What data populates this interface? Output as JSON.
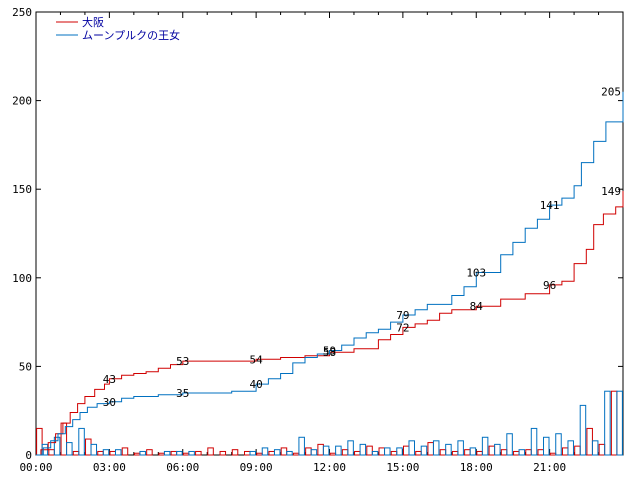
{
  "chart_data": {
    "type": "line",
    "title": "",
    "xlabel": "",
    "ylabel": "",
    "xlim_hours": [
      0,
      24
    ],
    "ylim": [
      0,
      250
    ],
    "grid": false,
    "legend_position": "top-left",
    "x_tick_labels": [
      "00:00",
      "03:00",
      "06:00",
      "09:00",
      "12:00",
      "15:00",
      "18:00",
      "21:00"
    ],
    "y_tick_labels": [
      "0",
      "50",
      "100",
      "150",
      "200",
      "250"
    ],
    "series": [
      {
        "name": "大阪",
        "color": "#d00000",
        "cumulative_points": [
          [
            0.0,
            0
          ],
          [
            0.2,
            3
          ],
          [
            0.5,
            7
          ],
          [
            0.8,
            12
          ],
          [
            1.1,
            18
          ],
          [
            1.4,
            24
          ],
          [
            1.7,
            29
          ],
          [
            2.0,
            33
          ],
          [
            2.4,
            37
          ],
          [
            2.8,
            40
          ],
          [
            3.0,
            43
          ],
          [
            3.5,
            45
          ],
          [
            4.0,
            46
          ],
          [
            4.5,
            47
          ],
          [
            5.0,
            49
          ],
          [
            5.5,
            51
          ],
          [
            6.0,
            53
          ],
          [
            7.0,
            53
          ],
          [
            8.0,
            53
          ],
          [
            9.0,
            54
          ],
          [
            10.0,
            55
          ],
          [
            11.0,
            56
          ],
          [
            11.5,
            56
          ],
          [
            12.0,
            58
          ],
          [
            13.0,
            60
          ],
          [
            14.0,
            65
          ],
          [
            14.5,
            68
          ],
          [
            15.0,
            72
          ],
          [
            15.5,
            74
          ],
          [
            16.0,
            76
          ],
          [
            16.5,
            80
          ],
          [
            17.0,
            82
          ],
          [
            18.0,
            84
          ],
          [
            19.0,
            88
          ],
          [
            20.0,
            91
          ],
          [
            21.0,
            96
          ],
          [
            21.5,
            98
          ],
          [
            22.0,
            108
          ],
          [
            22.5,
            116
          ],
          [
            22.8,
            130
          ],
          [
            23.2,
            136
          ],
          [
            23.7,
            140
          ],
          [
            24.0,
            149
          ]
        ],
        "point_labels": [
          {
            "x": 3.0,
            "y": 43,
            "text": "43"
          },
          {
            "x": 6.0,
            "y": 53,
            "text": "53"
          },
          {
            "x": 9.0,
            "y": 54,
            "text": "54"
          },
          {
            "x": 12.0,
            "y": 58,
            "text": "58"
          },
          {
            "x": 15.0,
            "y": 72,
            "text": "72"
          },
          {
            "x": 18.0,
            "y": 84,
            "text": "84"
          },
          {
            "x": 21.0,
            "y": 96,
            "text": "96"
          },
          {
            "x": 24.0,
            "y": 149,
            "text": "149"
          }
        ],
        "hourly_bars": [
          15,
          3,
          18,
          2,
          9,
          2,
          2,
          4,
          1,
          3,
          1,
          2,
          1,
          2,
          4,
          2,
          3,
          2,
          1,
          2,
          4,
          1,
          4,
          6,
          1,
          3,
          2,
          5,
          4,
          2,
          5,
          2,
          7,
          3,
          2,
          3,
          2,
          5,
          3,
          2,
          3,
          3,
          1,
          4,
          5,
          15,
          6,
          36
        ]
      },
      {
        "name": "ムーンプルクの王女",
        "color": "#0070c0",
        "cumulative_points": [
          [
            0.0,
            0
          ],
          [
            0.3,
            4
          ],
          [
            0.6,
            8
          ],
          [
            0.9,
            12
          ],
          [
            1.2,
            16
          ],
          [
            1.5,
            20
          ],
          [
            1.8,
            24
          ],
          [
            2.1,
            27
          ],
          [
            2.5,
            29
          ],
          [
            3.0,
            30
          ],
          [
            3.5,
            32
          ],
          [
            4.0,
            33
          ],
          [
            5.0,
            34
          ],
          [
            6.0,
            35
          ],
          [
            7.0,
            35
          ],
          [
            8.0,
            36
          ],
          [
            9.0,
            40
          ],
          [
            9.5,
            43
          ],
          [
            10.0,
            46
          ],
          [
            10.5,
            52
          ],
          [
            11.0,
            55
          ],
          [
            11.5,
            57
          ],
          [
            12.0,
            59
          ],
          [
            12.5,
            62
          ],
          [
            13.0,
            66
          ],
          [
            13.5,
            69
          ],
          [
            14.0,
            71
          ],
          [
            14.5,
            75
          ],
          [
            15.0,
            79
          ],
          [
            15.5,
            82
          ],
          [
            16.0,
            85
          ],
          [
            17.0,
            90
          ],
          [
            17.5,
            95
          ],
          [
            18.0,
            103
          ],
          [
            19.0,
            113
          ],
          [
            19.5,
            120
          ],
          [
            20.0,
            128
          ],
          [
            20.5,
            133
          ],
          [
            21.0,
            141
          ],
          [
            21.5,
            145
          ],
          [
            22.0,
            152
          ],
          [
            22.3,
            165
          ],
          [
            22.8,
            177
          ],
          [
            23.3,
            188
          ],
          [
            24.0,
            205
          ]
        ],
        "point_labels": [
          {
            "x": 3.0,
            "y": 30,
            "text": "30"
          },
          {
            "x": 6.0,
            "y": 35,
            "text": "35"
          },
          {
            "x": 9.0,
            "y": 40,
            "text": "40"
          },
          {
            "x": 12.0,
            "y": 59,
            "text": "59"
          },
          {
            "x": 15.0,
            "y": 79,
            "text": "79"
          },
          {
            "x": 18.0,
            "y": 103,
            "text": "103"
          },
          {
            "x": 21.0,
            "y": 141,
            "text": "141"
          },
          {
            "x": 24.0,
            "y": 205,
            "text": "205"
          }
        ],
        "hourly_bars": [
          6,
          10,
          7,
          15,
          6,
          3,
          3,
          0,
          2,
          0,
          2,
          2,
          2,
          0,
          0,
          0,
          0,
          2,
          4,
          3,
          2,
          10,
          3,
          5,
          5,
          8,
          6,
          2,
          4,
          4,
          8,
          5,
          8,
          6,
          8,
          4,
          10,
          6,
          12,
          3,
          15,
          10,
          12,
          8,
          28,
          8,
          36,
          36
        ]
      }
    ]
  }
}
